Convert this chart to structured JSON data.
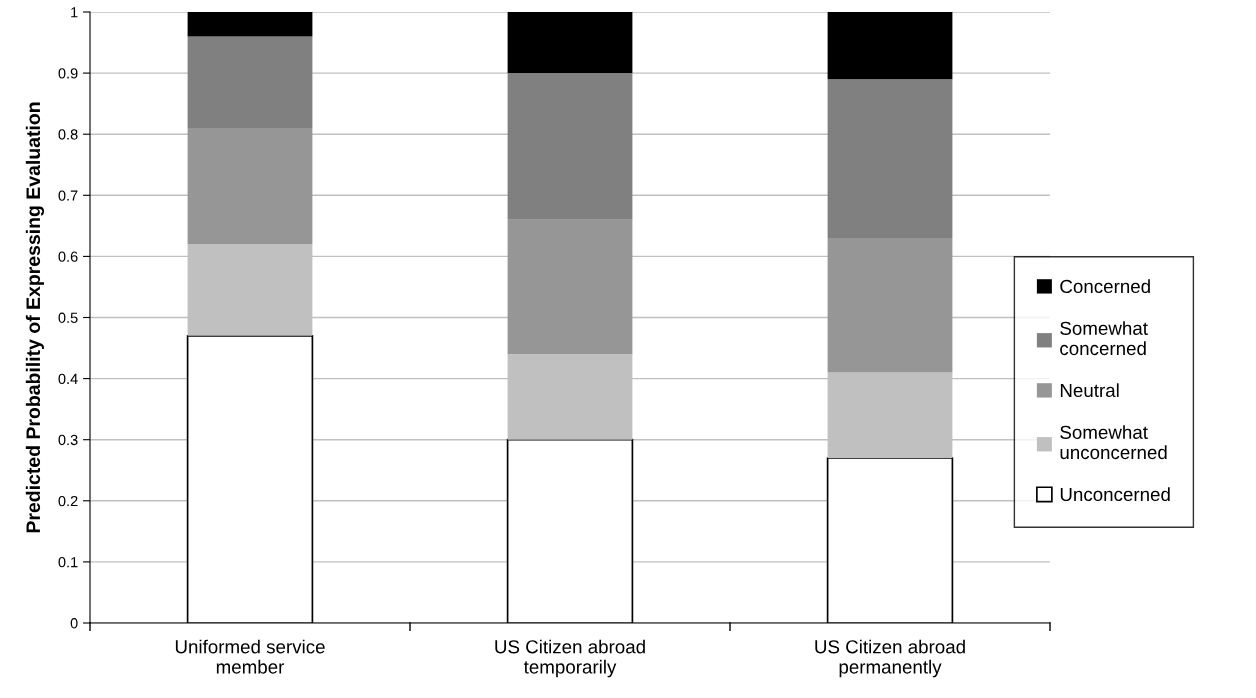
{
  "chart_data": {
    "type": "bar",
    "stacked": true,
    "ylabel": "Predicted Probability of Expressing Evaluation",
    "categories": [
      "Uniformed service\nmember",
      "US Citizen abroad\ntemporarily",
      "US Citizen abroad\npermanently"
    ],
    "series": [
      {
        "name": "Unconcerned",
        "color": "#ffffff",
        "values": [
          0.47,
          0.3,
          0.27
        ]
      },
      {
        "name": "Somewhat\nunconcerned",
        "color": "#c0c0c0",
        "values": [
          0.15,
          0.14,
          0.14
        ]
      },
      {
        "name": "Neutral",
        "color": "#969696",
        "values": [
          0.19,
          0.22,
          0.22
        ]
      },
      {
        "name": "Somewhat\nconcerned",
        "color": "#808080",
        "values": [
          0.15,
          0.24,
          0.26
        ]
      },
      {
        "name": "Concerned",
        "color": "#000000",
        "values": [
          0.04,
          0.1,
          0.11
        ]
      }
    ],
    "ylim": [
      0,
      1
    ],
    "yticks": [
      0,
      0.1,
      0.2,
      0.3,
      0.4,
      0.5,
      0.6,
      0.7,
      0.8,
      0.9,
      1
    ],
    "grid": "y",
    "legend": "right"
  }
}
